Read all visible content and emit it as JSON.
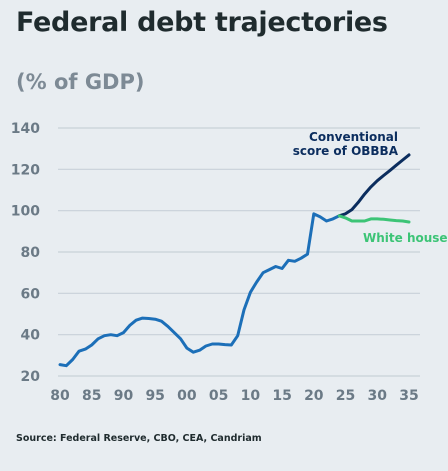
{
  "title": "Federal debt trajectories",
  "subtitle": "(% of GDP)",
  "source": "Source: Federal Reserve, CBO, CEA, Candriam",
  "colors": {
    "historical": "#1c6fb8",
    "conventional": "#0b2d5e",
    "white_house": "#3cc476",
    "grid": "#c8d1d8",
    "tick": "#6b7a86"
  },
  "chart_data": {
    "type": "line",
    "title": "Federal debt trajectories",
    "subtitle": "(% of GDP)",
    "xlabel": "",
    "ylabel": "",
    "xlim": [
      1979,
      2037
    ],
    "ylim": [
      20,
      140
    ],
    "yticks": [
      20,
      40,
      60,
      80,
      100,
      120,
      140
    ],
    "xticks": [
      1980,
      1985,
      1990,
      1995,
      2000,
      2005,
      2010,
      2015,
      2020,
      2025,
      2030,
      2035
    ],
    "xtick_labels": [
      "80",
      "85",
      "90",
      "95",
      "00",
      "05",
      "10",
      "15",
      "20",
      "25",
      "30",
      "35"
    ],
    "grid": "horizontal",
    "series": [
      {
        "key": "historical",
        "x": [
          1980,
          1981,
          1982,
          1983,
          1984,
          1985,
          1986,
          1987,
          1988,
          1989,
          1990,
          1991,
          1992,
          1993,
          1994,
          1995,
          1996,
          1997,
          1998,
          1999,
          2000,
          2001,
          2002,
          2003,
          2004,
          2005,
          2006,
          2007,
          2008,
          2009,
          2010,
          2011,
          2012,
          2013,
          2014,
          2015,
          2016,
          2017,
          2018,
          2019,
          2020,
          2021,
          2022,
          2023,
          2024
        ],
        "y": [
          25.5,
          25,
          28,
          32,
          33,
          35,
          38,
          39.5,
          40,
          39.5,
          41,
          44.5,
          47,
          48,
          47.8,
          47.5,
          46.5,
          44,
          41,
          38,
          33.5,
          31.5,
          32.5,
          34.5,
          35.5,
          35.5,
          35.2,
          35,
          39.5,
          52,
          60.5,
          65.5,
          70,
          71.5,
          73,
          72,
          76,
          75.5,
          77,
          79,
          98.5,
          97,
          95,
          96,
          97.5
        ]
      },
      {
        "key": "conventional",
        "name": "Conventional score of OBBBA",
        "x": [
          2024,
          2025,
          2026,
          2027,
          2028,
          2029,
          2030,
          2031,
          2032,
          2033,
          2034,
          2035
        ],
        "y": [
          97.5,
          98.5,
          100.5,
          104,
          108,
          111.5,
          114.5,
          117,
          119.5,
          122,
          124.5,
          127
        ]
      },
      {
        "key": "white_house",
        "name": "White house",
        "x": [
          2024,
          2025,
          2026,
          2027,
          2028,
          2029,
          2030,
          2031,
          2032,
          2033,
          2034,
          2035
        ],
        "y": [
          97.5,
          96.5,
          95,
          95,
          95,
          96,
          96,
          95.8,
          95.5,
          95.2,
          95,
          94.5
        ]
      }
    ],
    "annotations": [
      {
        "text_lines": [
          "Conventional",
          "score of OBBBA"
        ],
        "series": "conventional"
      },
      {
        "text_lines": [
          "White house"
        ],
        "series": "white_house"
      }
    ]
  }
}
